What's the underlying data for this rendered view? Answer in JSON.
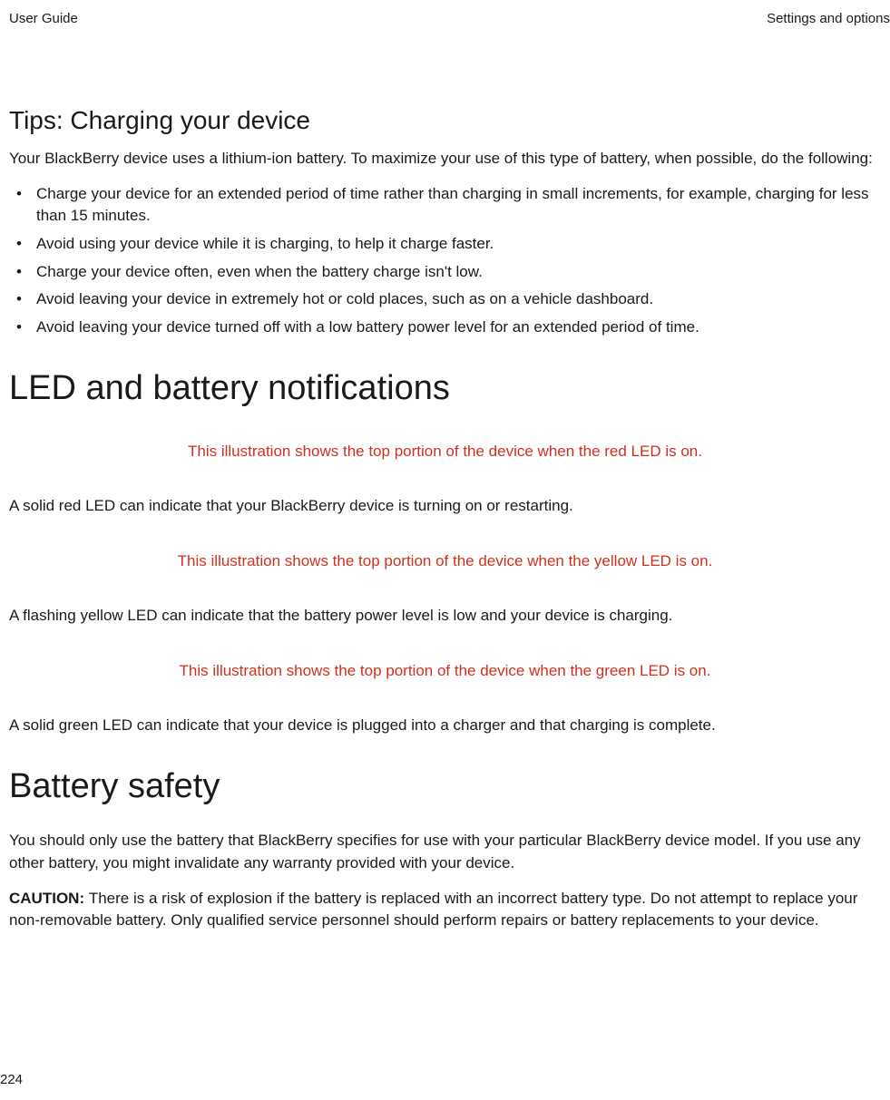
{
  "header": {
    "left": "User Guide",
    "right": "Settings and options"
  },
  "section1": {
    "title": "Tips: Charging your device",
    "intro": "Your BlackBerry device uses a lithium-ion battery. To maximize your use of this type of battery, when possible, do the following:",
    "bullets": [
      "Charge your device for an extended period of time rather than charging in small increments, for example, charging for less than 15 minutes.",
      "Avoid using your device while it is charging, to help it charge faster.",
      "Charge your device often, even when the battery charge isn't low.",
      "Avoid leaving your device in extremely hot or cold places, such as on a vehicle dashboard.",
      "Avoid leaving your device turned off with a low battery power level for an extended period of time."
    ]
  },
  "section2": {
    "title": "LED and battery notifications",
    "items": [
      {
        "illus": "This illustration shows the top portion of the device when the red LED is on.",
        "text": "A solid red LED can indicate that your BlackBerry device is turning on or restarting."
      },
      {
        "illus": "This illustration shows the top portion of the device when the yellow LED is on.",
        "text": "A flashing yellow LED can indicate that the battery power level is low and your device is charging."
      },
      {
        "illus": "This illustration shows the top portion of the device when the green LED is on.",
        "text": "A solid green LED can indicate that your device is plugged into a charger and that charging is complete."
      }
    ]
  },
  "section3": {
    "title": "Battery safety",
    "para1": "You should only use the battery that BlackBerry specifies for use with your particular BlackBerry device model. If you use any other battery, you might invalidate any warranty provided with your device.",
    "caution_label": "CAUTION: ",
    "caution_text": "There is a risk of explosion if the battery is replaced with an incorrect battery type. Do not attempt to replace your non-removable battery. Only qualified service personnel should perform repairs or battery replacements to your device."
  },
  "page": "224",
  "colors": {
    "illus_text": "#d03020",
    "body_text": "#1a1a1a",
    "background": "#ffffff"
  }
}
